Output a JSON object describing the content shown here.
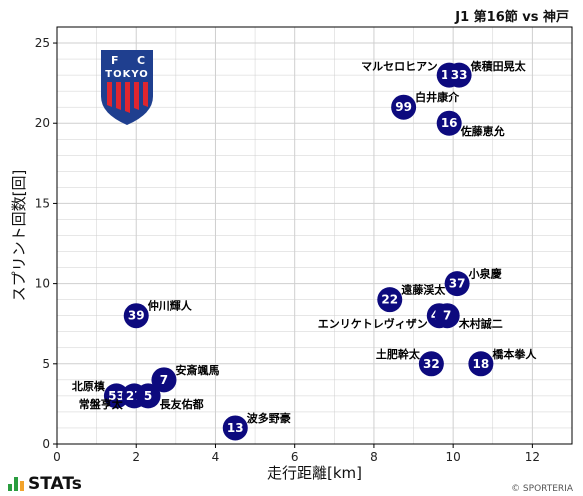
{
  "header": {
    "title": "J1 第16節 vs 神戸"
  },
  "branding": {
    "club_logo_text": [
      "F",
      "C",
      "TOKYO"
    ],
    "stats_text": "STATs",
    "copyright": "© SPORTERIA"
  },
  "colors": {
    "point": "#0d0a7e",
    "grid": "#cfcfcf",
    "logo_blue": "#1f3f8f",
    "logo_red": "#e0262f",
    "stats_green": "#2a9d3f",
    "stats_orange": "#f2a32b"
  },
  "chart_data": {
    "type": "scatter",
    "xlabel": "走行距離[km]",
    "ylabel": "スプリント回数[回]",
    "xlim": [
      0,
      13
    ],
    "ylim": [
      0,
      26
    ],
    "xticks": [
      0,
      2,
      4,
      6,
      8,
      10,
      12
    ],
    "yticks": [
      0,
      5,
      10,
      15,
      20,
      25
    ],
    "grid": true,
    "points": [
      {
        "number": "19",
        "name": "マルセロヒアン",
        "x": 9.9,
        "y": 23,
        "label_side": "left"
      },
      {
        "number": "33",
        "name": "俵積田晃太",
        "x": 10.15,
        "y": 23,
        "label_side": "right"
      },
      {
        "number": "99",
        "name": "白井康介",
        "x": 8.75,
        "y": 21,
        "label_side": "right-up"
      },
      {
        "number": "16",
        "name": "佐藤恵允",
        "x": 9.9,
        "y": 20,
        "label_side": "right-down"
      },
      {
        "number": "37",
        "name": "小泉慶",
        "x": 10.1,
        "y": 10,
        "label_side": "right-up"
      },
      {
        "number": "22",
        "name": "遠藤渓太",
        "x": 8.4,
        "y": 9,
        "label_side": "right-up"
      },
      {
        "number": "44",
        "name": "エンリケトレヴィザン",
        "x": 9.65,
        "y": 8,
        "label_side": "left-down"
      },
      {
        "number": "7",
        "name": "木村誠二",
        "x": 9.85,
        "y": 8,
        "label_side": "right-down"
      },
      {
        "number": "39",
        "name": "仲川輝人",
        "x": 2.0,
        "y": 8,
        "label_side": "right-up"
      },
      {
        "number": "32",
        "name": "土肥幹太",
        "x": 9.45,
        "y": 5,
        "label_side": "left-up"
      },
      {
        "number": "18",
        "name": "橋本拳人",
        "x": 10.7,
        "y": 5,
        "label_side": "right-up"
      },
      {
        "number": "7",
        "name": "安斎颯馬",
        "x": 2.7,
        "y": 4,
        "label_side": "right-up"
      },
      {
        "number": "53",
        "name": "北原槙",
        "x": 1.5,
        "y": 3,
        "label_side": "left-up"
      },
      {
        "number": "27",
        "name": "常盤亨太",
        "x": 1.95,
        "y": 3,
        "label_side": "left-down"
      },
      {
        "number": "5",
        "name": "長友佑都",
        "x": 2.3,
        "y": 3,
        "label_side": "right-down"
      },
      {
        "number": "13",
        "name": "波多野豪",
        "x": 4.5,
        "y": 1,
        "label_side": "right-up"
      }
    ]
  }
}
